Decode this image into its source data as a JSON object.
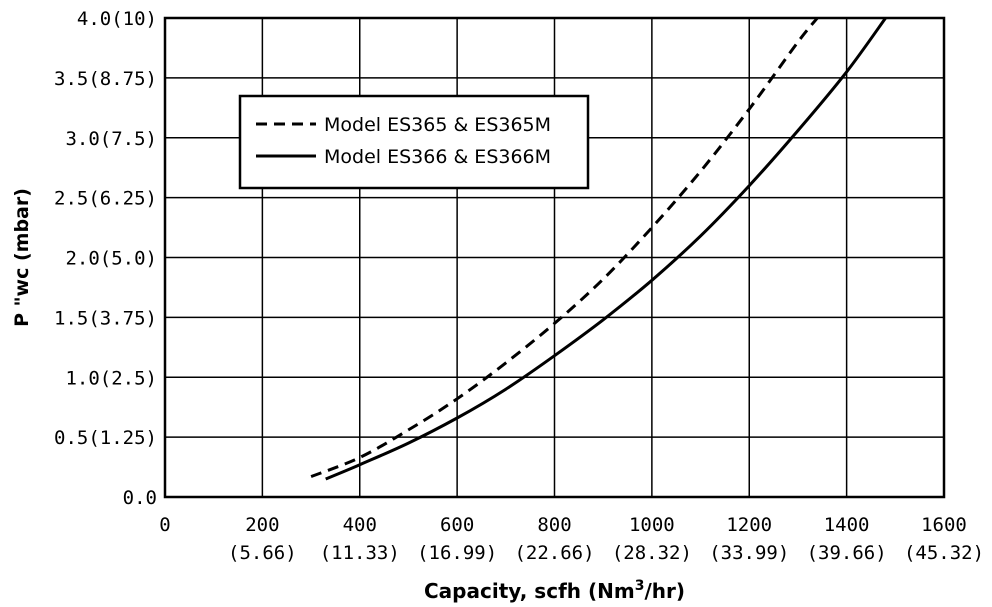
{
  "chart_data": {
    "type": "line",
    "title": "",
    "xlabel": "Capacity, scfh (Nm",
    "xlabel_sup": "3",
    "xlabel_tail": "/hr)",
    "ylabel": "P \"wc (mbar)",
    "xlim": [
      0,
      1600
    ],
    "ylim": [
      0,
      4.0
    ],
    "grid": true,
    "legend_position": "top-left",
    "x_ticks": [
      {
        "value": 0,
        "label": "0",
        "sublabel": ""
      },
      {
        "value": 200,
        "label": "200",
        "sublabel": "(5.66)"
      },
      {
        "value": 400,
        "label": "400",
        "sublabel": "(11.33)"
      },
      {
        "value": 600,
        "label": "600",
        "sublabel": "(16.99)"
      },
      {
        "value": 800,
        "label": "800",
        "sublabel": "(22.66)"
      },
      {
        "value": 1000,
        "label": "1000",
        "sublabel": "(28.32)"
      },
      {
        "value": 1200,
        "label": "1200",
        "sublabel": "(33.99)"
      },
      {
        "value": 1400,
        "label": "1400",
        "sublabel": "(39.66)"
      },
      {
        "value": 1600,
        "label": "1600",
        "sublabel": "(45.32)"
      }
    ],
    "y_ticks": [
      {
        "value": 0.0,
        "label": "0.0"
      },
      {
        "value": 0.5,
        "label": "0.5(1.25)"
      },
      {
        "value": 1.0,
        "label": "1.0(2.5)"
      },
      {
        "value": 1.5,
        "label": "1.5(3.75)"
      },
      {
        "value": 2.0,
        "label": "2.0(5.0)"
      },
      {
        "value": 2.5,
        "label": "2.5(6.25)"
      },
      {
        "value": 3.0,
        "label": "3.0(7.5)"
      },
      {
        "value": 3.5,
        "label": "3.5(8.75)"
      },
      {
        "value": 4.0,
        "label": "4.0(10)"
      }
    ],
    "series": [
      {
        "name": "Model ES365 & ES365M",
        "style": "dashed",
        "color": "#000000",
        "x": [
          300,
          400,
          500,
          600,
          700,
          800,
          900,
          1000,
          1100,
          1200,
          1300,
          1340
        ],
        "y": [
          0.17,
          0.33,
          0.56,
          0.82,
          1.12,
          1.45,
          1.82,
          2.25,
          2.72,
          3.24,
          3.8,
          4.0
        ]
      },
      {
        "name": "Model ES366 & ES366M",
        "style": "solid",
        "color": "#000000",
        "x": [
          330,
          400,
          500,
          600,
          700,
          800,
          900,
          1000,
          1100,
          1200,
          1300,
          1400,
          1480
        ],
        "y": [
          0.15,
          0.27,
          0.45,
          0.66,
          0.9,
          1.18,
          1.48,
          1.81,
          2.18,
          2.6,
          3.06,
          3.55,
          4.0
        ]
      }
    ]
  }
}
